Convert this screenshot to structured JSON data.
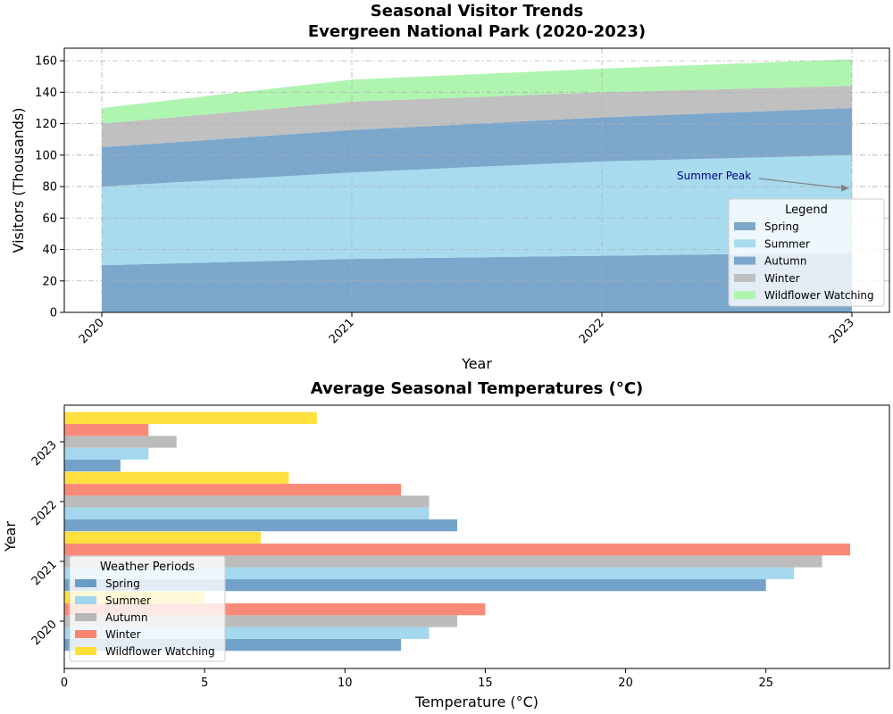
{
  "chart_data": [
    {
      "type": "area",
      "title": "Seasonal Visitor Trends\nEvergreen National Park (2020-2023)",
      "title_lines": [
        "Seasonal Visitor Trends",
        "Evergreen National Park (2020-2023)"
      ],
      "xlabel": "Year",
      "ylabel": "Visitors (Thousands)",
      "categories": [
        "2020",
        "2021",
        "2022",
        "2023"
      ],
      "ylim": [
        0,
        168
      ],
      "yticks": [
        0,
        20,
        40,
        60,
        80,
        100,
        120,
        140,
        160
      ],
      "stacked": true,
      "grid": true,
      "legend_title": "Legend",
      "legend_position": "lower-right",
      "series": [
        {
          "name": "Spring",
          "values": [
            30,
            34,
            36,
            38
          ],
          "color": "#7ba7cc"
        },
        {
          "name": "Summer",
          "values": [
            50,
            55,
            60,
            62
          ],
          "color": "#a8dbee"
        },
        {
          "name": "Autumn",
          "values": [
            25,
            27,
            28,
            30
          ],
          "color": "#7ba7cc"
        },
        {
          "name": "Winter",
          "values": [
            15,
            18,
            16,
            14
          ],
          "color": "#c0c0c0"
        },
        {
          "name": "Wildflower Watching",
          "values": [
            10,
            14,
            15,
            17
          ],
          "color": "#aff5b0"
        }
      ],
      "annotation": {
        "text": "Summer Peak",
        "x": "2023",
        "y": 79
      }
    },
    {
      "type": "bar",
      "orientation": "horizontal",
      "title": "Average Seasonal Temperatures (°C)",
      "xlabel": "Temperature (°C)",
      "ylabel": "Year",
      "categories": [
        "2020",
        "2021",
        "2022",
        "2023"
      ],
      "xlim": [
        0,
        29.4
      ],
      "xticks": [
        0,
        5,
        10,
        15,
        20,
        25
      ],
      "legend_title": "Weather Periods",
      "legend_position": "lower-left",
      "series": [
        {
          "name": "Spring",
          "values": [
            12,
            25,
            14,
            2
          ],
          "color": "#6a9cc6"
        },
        {
          "name": "Summer",
          "values": [
            13,
            26,
            13,
            3
          ],
          "color": "#a0d6ee"
        },
        {
          "name": "Autumn",
          "values": [
            14,
            27,
            13,
            4
          ],
          "color": "#b8b8b8"
        },
        {
          "name": "Winter",
          "values": [
            15,
            28,
            12,
            3
          ],
          "color": "#fa8470"
        },
        {
          "name": "Wildflower Watching",
          "values": [
            5,
            7,
            8,
            9
          ],
          "color": "#ffde35"
        }
      ]
    }
  ]
}
